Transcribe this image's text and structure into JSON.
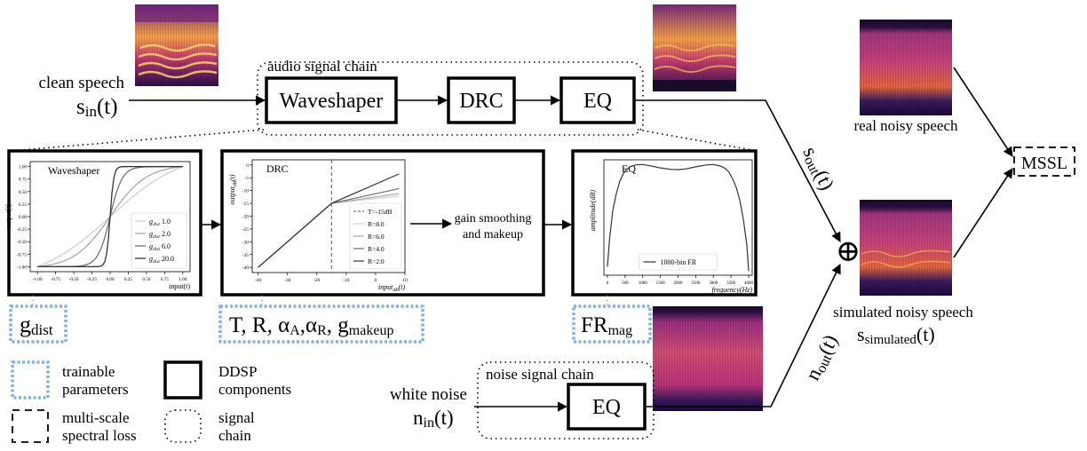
{
  "inputs": {
    "clean_speech_label": "clean speech",
    "clean_speech_sym": "s",
    "clean_speech_sub": "in",
    "clean_speech_arg": "(t)",
    "white_noise_label": "white noise",
    "white_noise_sym": "n",
    "white_noise_sub": "in",
    "white_noise_arg": "(t)"
  },
  "audio_chain": {
    "title": "audio signal chain",
    "blocks": [
      "Waveshaper",
      "DRC",
      "EQ"
    ]
  },
  "noise_chain": {
    "title": "noise signal chain",
    "block": "EQ"
  },
  "outputs": {
    "s_out_sym": "s",
    "s_out_sub": "out",
    "s_out_arg": "(t)",
    "n_out_sym": "n",
    "n_out_sub": "out",
    "n_out_arg": "(t)",
    "sum_symbol": "⊕",
    "real_label": "real noisy speech",
    "sim_label": "simulated noisy speech",
    "sim_sym": "s",
    "sim_sub": "simulated",
    "sim_arg": "(t)",
    "loss_label": "MSSL"
  },
  "detail": {
    "gain_smoothing_line1": "gain smoothing",
    "gain_smoothing_line2": "and  makeup"
  },
  "params": {
    "waveshaper": {
      "sym": "g",
      "sub": "dist"
    },
    "drc": {
      "text": "T, R, α",
      "sub1": "A",
      "sep": ",α",
      "sub2": "R",
      "sep2": ", g",
      "sub3": "makeup"
    },
    "eq": {
      "sym": "FR",
      "sub": "mag"
    }
  },
  "legend": {
    "trainable_1": "trainable",
    "trainable_2": "parameters",
    "ddsp_1": "DDSP",
    "ddsp_2": "components",
    "mss_1": "multi-scale",
    "mss_2": "spectral loss",
    "chain_1": "signal",
    "chain_2": "chain"
  },
  "colors": {
    "param_border": "#7fb2e5",
    "spec_dark": "#1a0a3a",
    "spec_mid": "#b8327a",
    "spec_hot": "#f39a3c"
  },
  "chart_data": [
    {
      "type": "line",
      "title": "Waveshaper",
      "xlabel": "input(t)",
      "ylabel": "output(t)",
      "xlim": [
        -1.0,
        1.0
      ],
      "ylim": [
        -1.0,
        1.0
      ],
      "x_ticks": [
        "-1.00",
        "-0.75",
        "-0.50",
        "-0.25",
        "0.00",
        "0.25",
        "0.50",
        "0.75",
        "1.00"
      ],
      "y_ticks": [
        "1.00",
        "0.75",
        "0.50",
        "0.25",
        "0.00",
        "-0.25",
        "-0.50",
        "-0.75",
        "-1.00"
      ],
      "function": "tanh(g*x)/tanh(g)",
      "series": [
        {
          "name_sym": "g",
          "name_sub": "dist",
          "name_val": "1.0",
          "g": 1.0,
          "color": "#d0d0d0"
        },
        {
          "name_sym": "g",
          "name_sub": "dist",
          "name_val": "2.0",
          "g": 2.0,
          "color": "#a8a8a8"
        },
        {
          "name_sym": "g",
          "name_sub": "dist",
          "name_val": "6.0",
          "g": 6.0,
          "color": "#707070"
        },
        {
          "name_sym": "g",
          "name_sub": "dist",
          "name_val": "20.0",
          "g": 20.0,
          "color": "#333333"
        }
      ],
      "legend_position": "bottom-right"
    },
    {
      "type": "line",
      "title": "DRC",
      "xlabel": "input",
      "xlabel_sub": "dB",
      "xlabel_arg": "(t)",
      "ylabel": "output",
      "ylabel_sub": "dB",
      "ylabel_arg": "(t)",
      "xlim": [
        -42,
        10
      ],
      "ylim": [
        -42,
        2
      ],
      "x_ticks": [
        -40,
        -30,
        -20,
        -10,
        0,
        10
      ],
      "y_ticks": [
        0,
        -5,
        -10,
        -15,
        -20,
        -25,
        -30,
        -35,
        -40
      ],
      "threshold": -15,
      "threshold_label": "T=-15dB",
      "series": [
        {
          "name": "R=8.0",
          "ratio": 8.0,
          "color": "#d0d0d0"
        },
        {
          "name": "R=6.0",
          "ratio": 6.0,
          "color": "#a8a8a8"
        },
        {
          "name": "R=4.0",
          "ratio": 4.0,
          "color": "#707070"
        },
        {
          "name": "R=2.0",
          "ratio": 2.0,
          "color": "#333333"
        }
      ],
      "legend_position": "bottom-right"
    },
    {
      "type": "line",
      "title": "EQ",
      "xlabel": "frequency(Hz)",
      "ylabel": "amplitude(dB)",
      "xlim": [
        -100,
        4100
      ],
      "x_ticks": [
        0,
        500,
        1000,
        1500,
        2000,
        2500,
        3000,
        3500,
        4000
      ],
      "series": [
        {
          "name": "1000-bin FR",
          "x": [
            0,
            60,
            150,
            250,
            350,
            450,
            550,
            650,
            800,
            1000,
            1200,
            1500,
            1800,
            2000,
            2200,
            2500,
            2800,
            3000,
            3200,
            3350,
            3450,
            3550,
            3650,
            3750,
            3850,
            3950,
            4000
          ],
          "y": [
            -48,
            -35,
            -22,
            -14,
            -8,
            -4.5,
            -2.5,
            -1.2,
            -0.4,
            -0.2,
            -0.8,
            -1.8,
            -2.5,
            -2.6,
            -2.3,
            -1.3,
            -0.4,
            -0.2,
            -0.9,
            -2.2,
            -4,
            -7,
            -11,
            -17,
            -26,
            -38,
            -50
          ],
          "color": "#333333"
        }
      ],
      "ylim": [
        -52,
        2
      ],
      "legend_position": "bottom-center"
    }
  ]
}
